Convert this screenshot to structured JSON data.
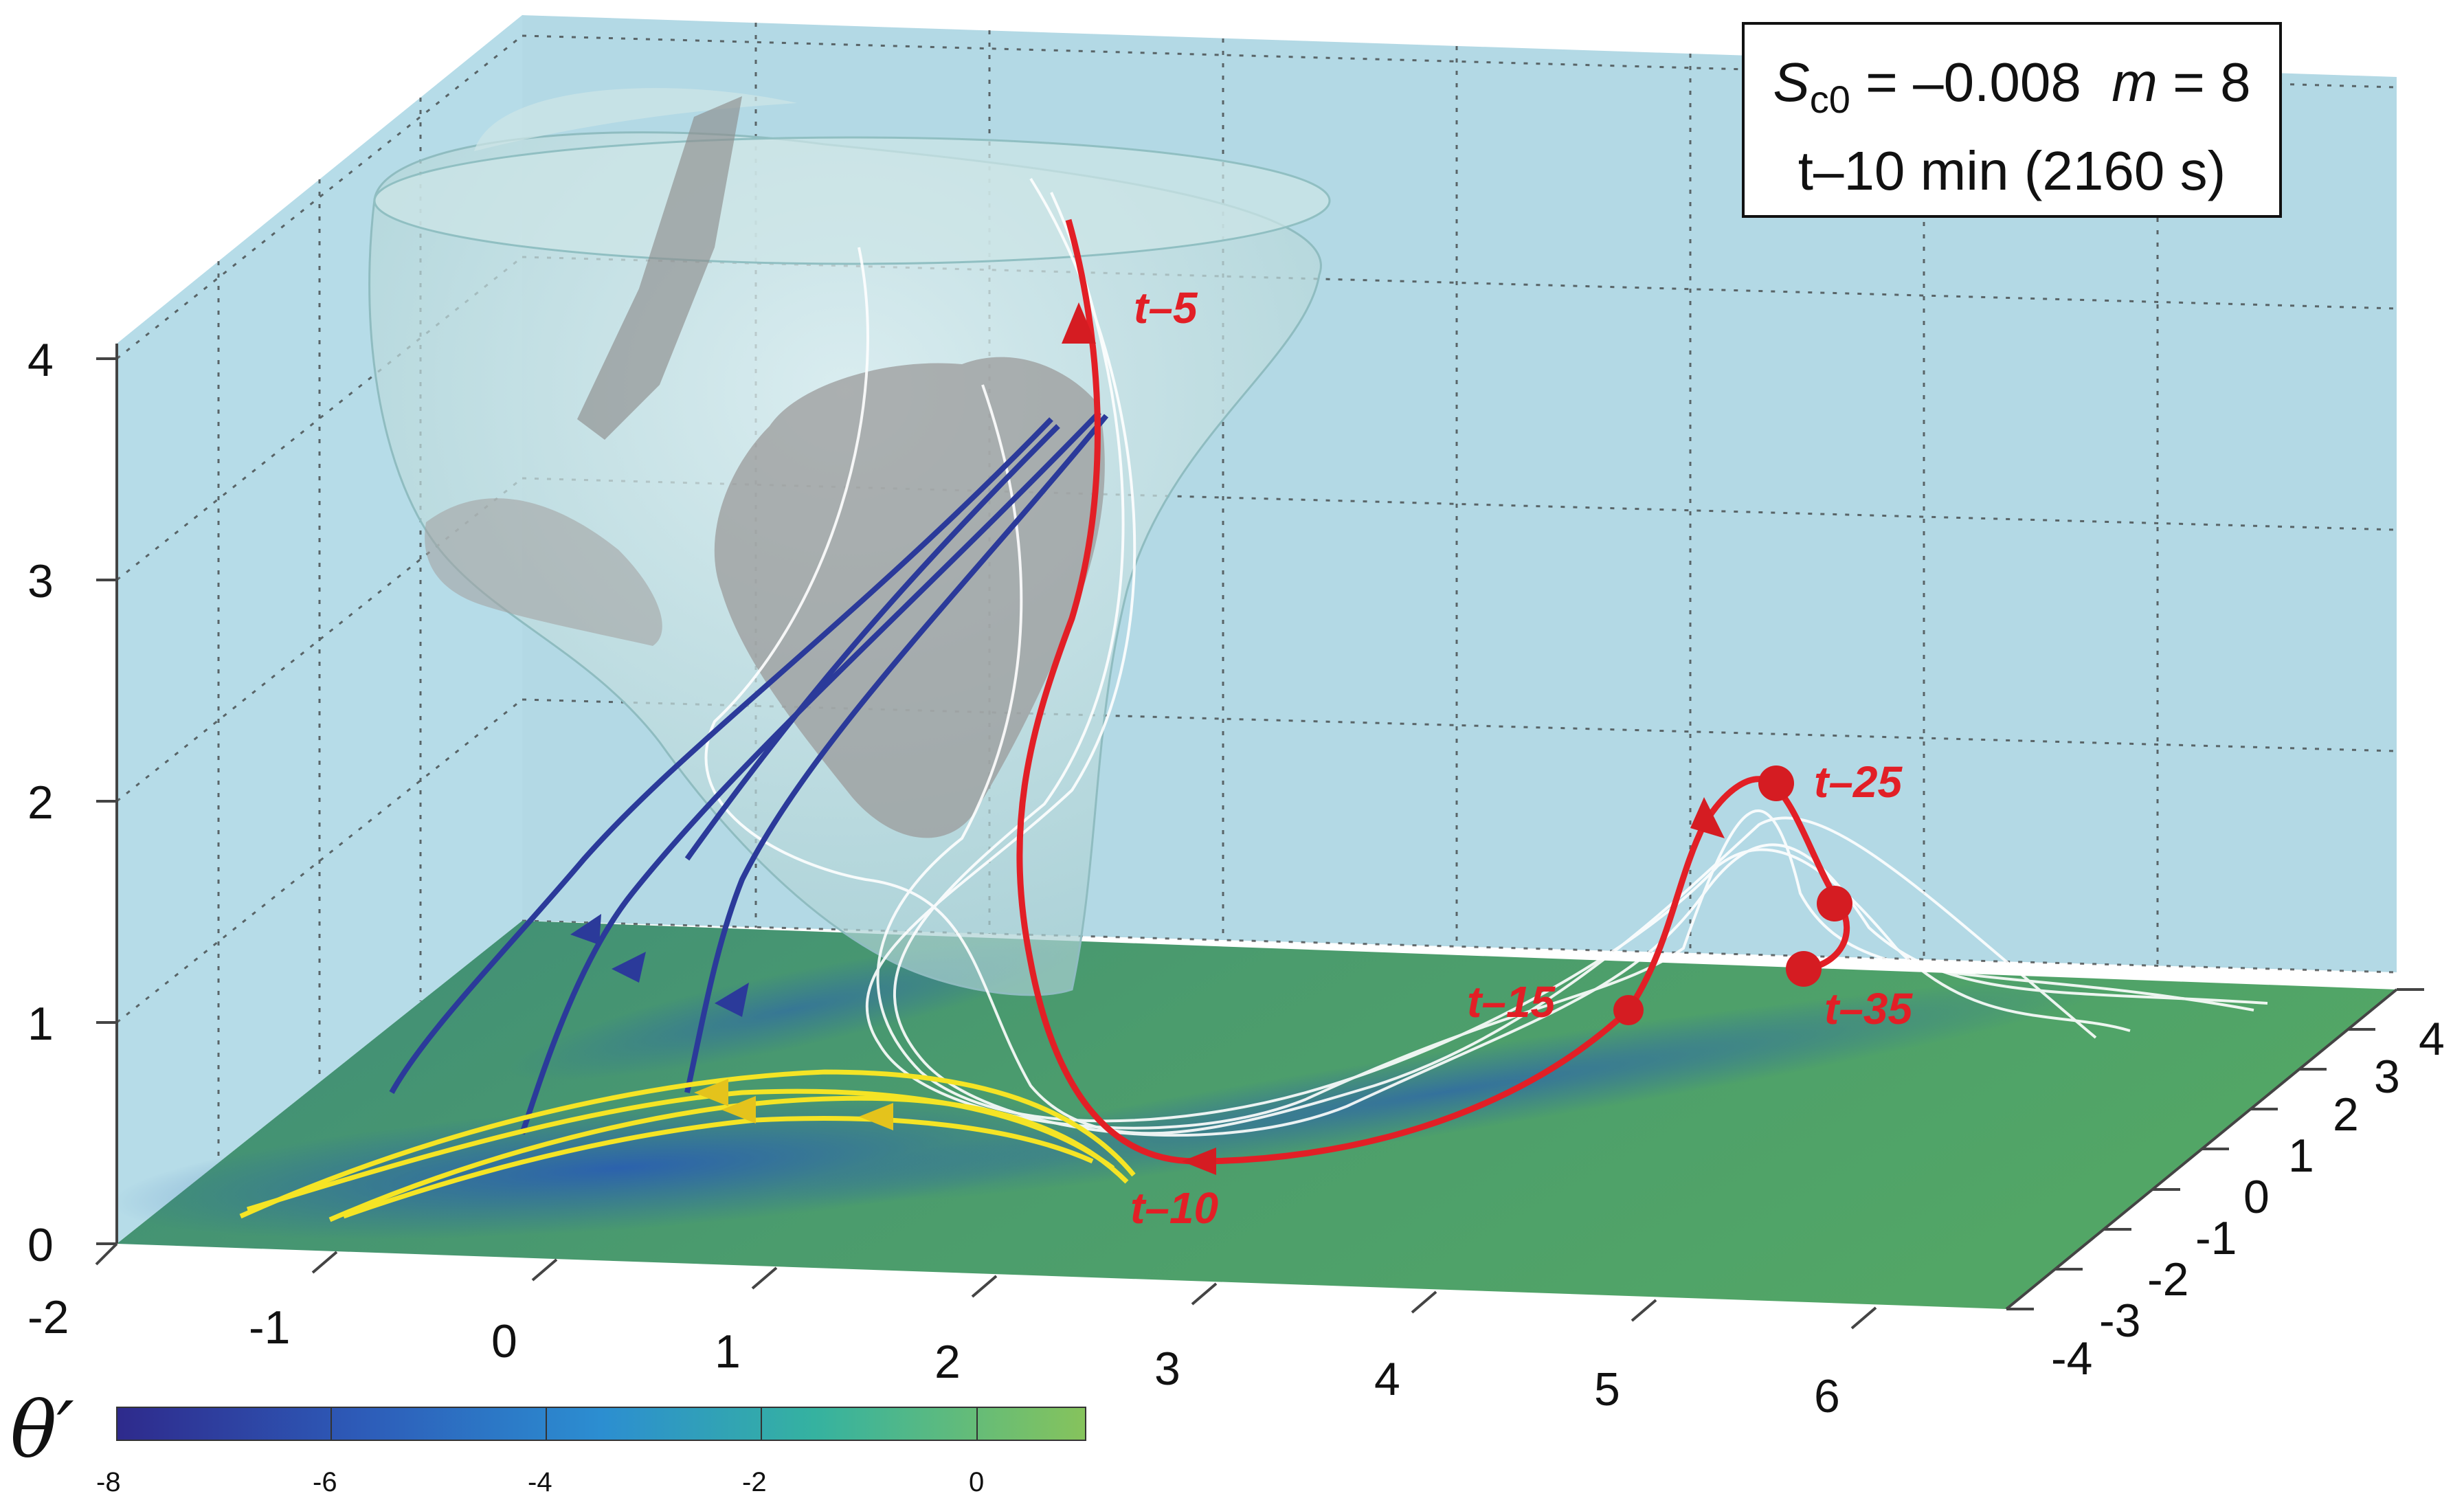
{
  "chart_data": {
    "type": "3d-trajectory-diagram",
    "title": "",
    "annotation": {
      "S_symbol": "S",
      "S_subscript": "c0",
      "S_value": "= –0.008",
      "m_symbol": "m",
      "m_value": "= 8",
      "time": "t–10 min (2160 s)"
    },
    "x_ticks": [
      "-2",
      "-1",
      "0",
      "1",
      "2",
      "3",
      "4",
      "5",
      "6"
    ],
    "y_ticks": [
      "-4",
      "-3",
      "-2",
      "-1",
      "0",
      "1",
      "2",
      "3",
      "4"
    ],
    "z_ticks": [
      "0",
      "1",
      "2",
      "3",
      "4"
    ],
    "colorbar": {
      "symbol": "θ′",
      "ticks": [
        "-8",
        "-6",
        "-4",
        "-2",
        "0"
      ],
      "range": [
        -8,
        1
      ]
    },
    "trajectory_labels": [
      "t–5",
      "t–10",
      "t–15",
      "t–25",
      "t–35"
    ],
    "colors": {
      "box_face": "#b7dde9",
      "ground": "#4ea067",
      "ground_cold": "#2f6fb8",
      "red_trajectory": "#e21f26",
      "blue_trajectories": "#2b3a9a",
      "yellow_trajectories": "#f5e425",
      "isosurface_outer": "#c9e3e4",
      "isosurface_inner": "#9a9a9a"
    },
    "grid": true
  }
}
